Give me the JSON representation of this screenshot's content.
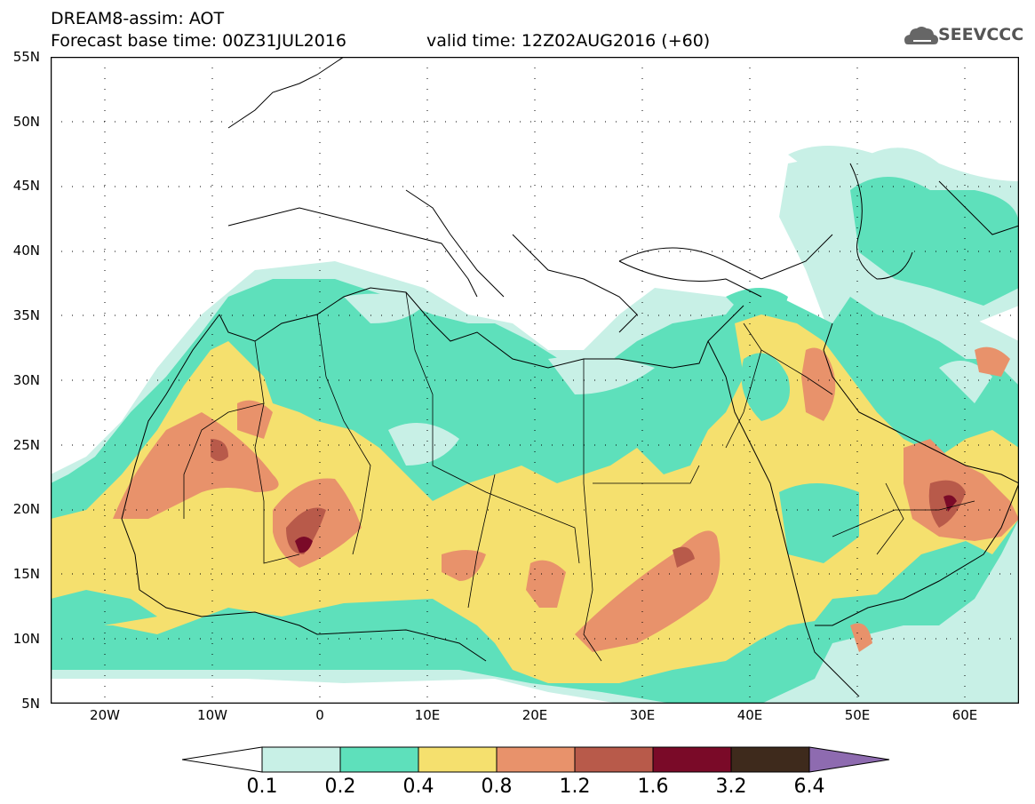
{
  "header": {
    "title": "DREAM8-assim: AOT",
    "base_time": "Forecast base time: 00Z31JUL2016",
    "valid_time": "valid time: 12Z02AUG2016 (+60)"
  },
  "logo": {
    "text": "SEEVCCC",
    "icon": "cloud-icon"
  },
  "map": {
    "lat_labels": [
      "55N",
      "50N",
      "45N",
      "40N",
      "35N",
      "30N",
      "25N",
      "20N",
      "15N",
      "10N",
      "5N"
    ],
    "lon_labels": [
      "20W",
      "10W",
      "0",
      "10E",
      "20E",
      "30E",
      "40E",
      "50E",
      "60E"
    ],
    "lat_range": [
      5,
      55
    ],
    "lon_range": [
      -25,
      65
    ]
  },
  "colorbar": {
    "levels": [
      "0.1",
      "0.2",
      "0.4",
      "0.8",
      "1.2",
      "1.6",
      "3.2",
      "6.4"
    ],
    "colors": [
      "#ffffff",
      "#c8f0e6",
      "#5ee0bb",
      "#f5e06e",
      "#e8926b",
      "#b85a4a",
      "#7a0a28",
      "#3e2a1c",
      "#8e6bb0"
    ]
  }
}
